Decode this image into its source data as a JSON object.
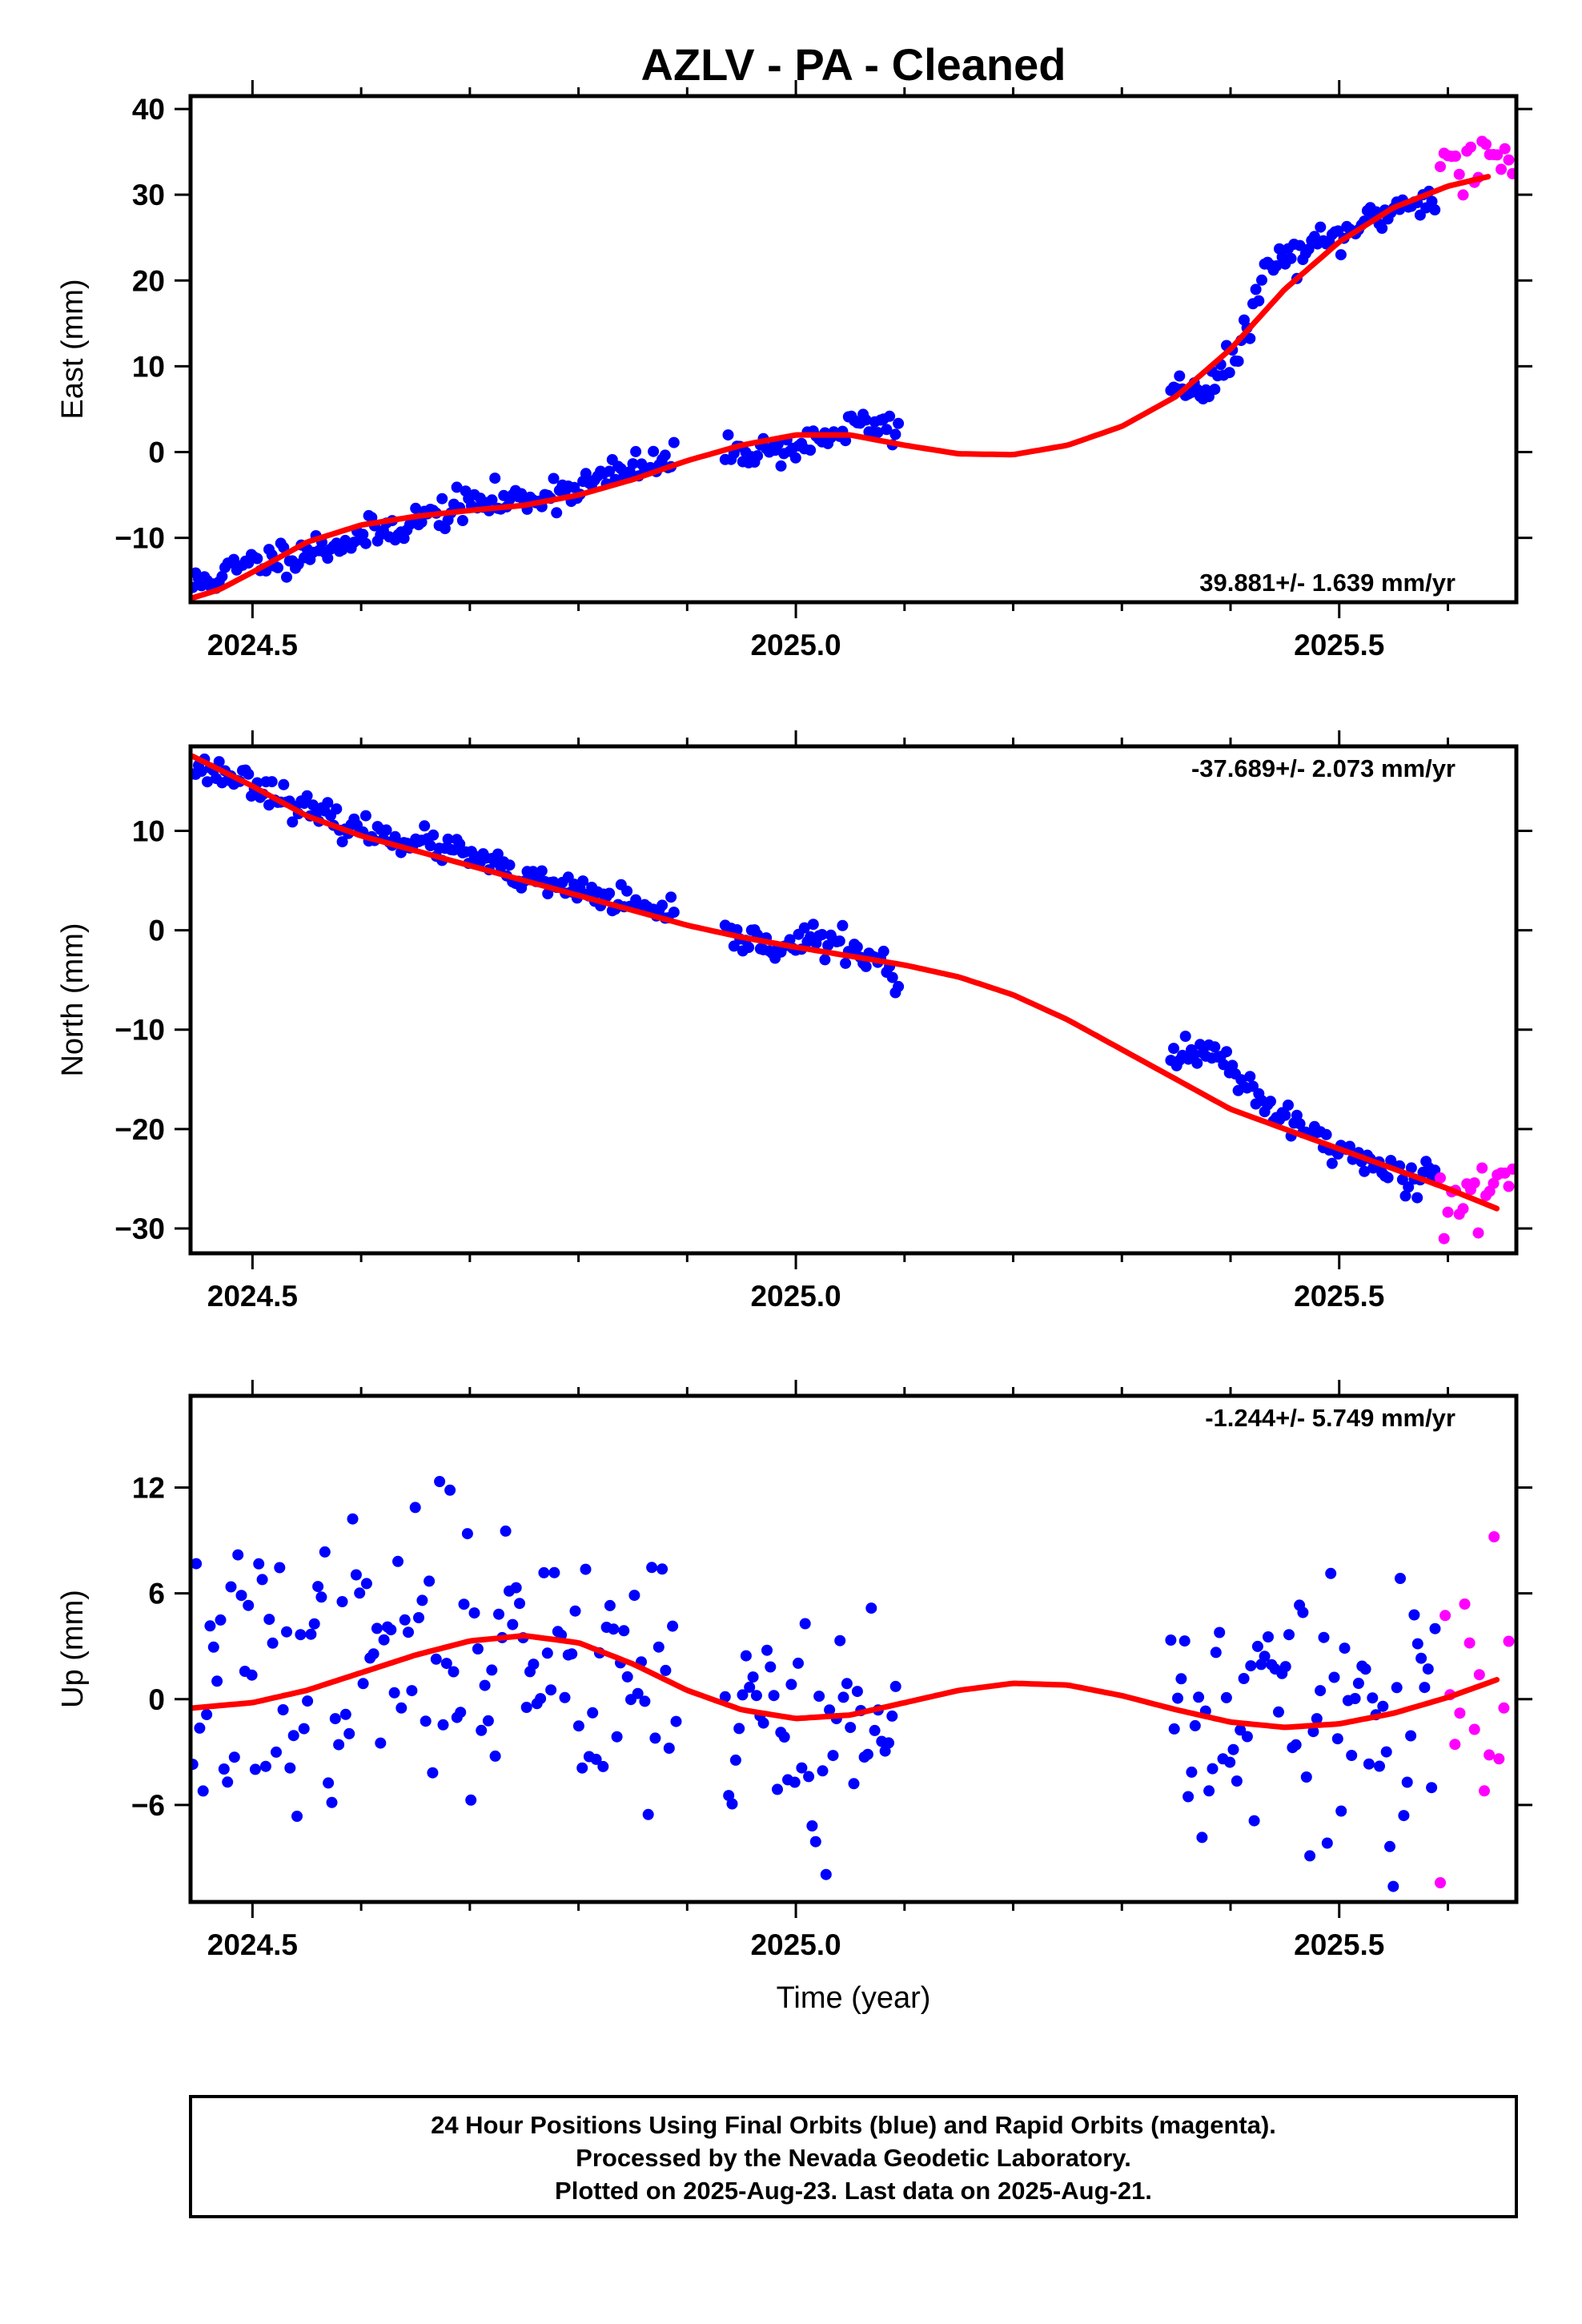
{
  "colors": {
    "final_orbits": "#0000ff",
    "rapid_orbits": "#ff00ff",
    "model_fit": "#ff0000",
    "frame": "#000000"
  },
  "chart_data": {
    "type": "scatter",
    "title": "AZLV  - PA - Cleaned",
    "xlabel": "Time (year)",
    "x_ticks": [
      "2024.5",
      "2025.0",
      "2025.5"
    ],
    "xlim": [
      2024.443,
      2025.663
    ],
    "grid": false,
    "footer_lines": [
      "24 Hour Positions Using Final Orbits (blue) and Rapid Orbits (magenta).",
      "Processed by the Nevada Geodetic Laboratory.",
      "Plotted on 2025-Aug-23. Last data on 2025-Aug-21."
    ],
    "panels": [
      {
        "name": "east",
        "ylabel": "East (mm)",
        "ylim": [
          -17.5,
          41.5
        ],
        "y_ticks": [
          "40",
          "30",
          "20",
          "10",
          "0",
          "−10"
        ],
        "y_tick_values": [
          40,
          30,
          20,
          10,
          0,
          -10
        ],
        "rate": "39.881+/- 1.639 mm/yr",
        "rate_position": "bottom-right",
        "seed": 11,
        "final_segments": [
          {
            "t0": 2024.445,
            "t1": 2024.89,
            "dt": 0.0027,
            "noise": 1.0
          },
          {
            "t0": 2024.935,
            "t1": 2025.095,
            "dt": 0.0027,
            "noise": 0.9
          },
          {
            "t0": 2025.345,
            "t1": 2025.59,
            "dt": 0.0027,
            "noise": 1.0
          }
        ],
        "rapid_segment": {
          "t0": 2025.593,
          "t1": 2025.66,
          "dt": 0.0035,
          "noise": 2.2,
          "offset": 2.8
        },
        "trend": [
          [
            2024.445,
            -17.0
          ],
          [
            2024.47,
            -16.0
          ],
          [
            2024.5,
            -14.0
          ],
          [
            2024.55,
            -10.5
          ],
          [
            2024.6,
            -8.5
          ],
          [
            2024.65,
            -7.5
          ],
          [
            2024.7,
            -6.8
          ],
          [
            2024.75,
            -6.2
          ],
          [
            2024.8,
            -5.0
          ],
          [
            2024.85,
            -3.2
          ],
          [
            2024.9,
            -1.0
          ],
          [
            2024.95,
            0.8
          ],
          [
            2025.0,
            2.0
          ],
          [
            2025.05,
            2.0
          ],
          [
            2025.1,
            0.8
          ],
          [
            2025.15,
            -0.2
          ],
          [
            2025.2,
            -0.3
          ],
          [
            2025.25,
            0.8
          ],
          [
            2025.3,
            3.0
          ],
          [
            2025.35,
            6.5
          ],
          [
            2025.4,
            12.0
          ],
          [
            2025.45,
            19.0
          ],
          [
            2025.5,
            24.5
          ],
          [
            2025.55,
            28.5
          ],
          [
            2025.6,
            31.0
          ],
          [
            2025.64,
            32.2
          ]
        ],
        "data_shape": [
          [
            2024.445,
            -15.5
          ],
          [
            2024.5,
            -13.0
          ],
          [
            2024.55,
            -11.5
          ],
          [
            2024.6,
            -10.0
          ],
          [
            2024.65,
            -8.0
          ],
          [
            2024.7,
            -6.0
          ],
          [
            2024.75,
            -5.5
          ],
          [
            2024.8,
            -4.0
          ],
          [
            2024.85,
            -2.0
          ],
          [
            2024.89,
            -1.0
          ],
          [
            2024.935,
            0.0
          ],
          [
            2025.0,
            0.5
          ],
          [
            2025.03,
            2.0
          ],
          [
            2025.06,
            3.2
          ],
          [
            2025.095,
            2.8
          ],
          [
            2025.345,
            7.5
          ],
          [
            2025.38,
            7.5
          ],
          [
            2025.41,
            12.0
          ],
          [
            2025.43,
            21.0
          ],
          [
            2025.45,
            22.5
          ],
          [
            2025.5,
            25.0
          ],
          [
            2025.55,
            28.5
          ],
          [
            2025.59,
            30.0
          ],
          [
            2025.66,
            31.0
          ]
        ]
      },
      {
        "name": "north",
        "ylabel": "North (mm)",
        "ylim": [
          -32.5,
          18.5
        ],
        "y_ticks": [
          "10",
          "0",
          "−10",
          "−20",
          "−30"
        ],
        "y_tick_values": [
          10,
          0,
          -10,
          -20,
          -30
        ],
        "rate": "-37.689+/- 2.073 mm/yr",
        "rate_position": "top-right",
        "seed": 23,
        "final_segments": [
          {
            "t0": 2024.445,
            "t1": 2024.89,
            "dt": 0.0027,
            "noise": 0.7
          },
          {
            "t0": 2024.935,
            "t1": 2025.095,
            "dt": 0.0027,
            "noise": 0.8
          },
          {
            "t0": 2025.345,
            "t1": 2025.59,
            "dt": 0.0027,
            "noise": 0.9
          }
        ],
        "rapid_segment": {
          "t0": 2025.593,
          "t1": 2025.66,
          "dt": 0.0035,
          "noise": 2.3,
          "offset": -0.5
        },
        "trend": [
          [
            2024.445,
            17.5
          ],
          [
            2024.5,
            14.5
          ],
          [
            2024.55,
            11.5
          ],
          [
            2024.6,
            9.5
          ],
          [
            2024.65,
            8.0
          ],
          [
            2024.7,
            6.5
          ],
          [
            2024.75,
            5.0
          ],
          [
            2024.8,
            3.5
          ],
          [
            2024.85,
            2.0
          ],
          [
            2024.9,
            0.5
          ],
          [
            2024.95,
            -0.7
          ],
          [
            2025.0,
            -1.7
          ],
          [
            2025.05,
            -2.6
          ],
          [
            2025.1,
            -3.5
          ],
          [
            2025.15,
            -4.7
          ],
          [
            2025.2,
            -6.5
          ],
          [
            2025.25,
            -9.0
          ],
          [
            2025.3,
            -12.0
          ],
          [
            2025.35,
            -15.0
          ],
          [
            2025.4,
            -18.0
          ],
          [
            2025.45,
            -20.0
          ],
          [
            2025.5,
            -22.0
          ],
          [
            2025.55,
            -24.0
          ],
          [
            2025.6,
            -26.0
          ],
          [
            2025.645,
            -28.0
          ]
        ],
        "data_shape": [
          [
            2024.445,
            16.5
          ],
          [
            2024.5,
            15.0
          ],
          [
            2024.55,
            12.0
          ],
          [
            2024.6,
            10.0
          ],
          [
            2024.65,
            9.0
          ],
          [
            2024.7,
            7.5
          ],
          [
            2024.75,
            5.0
          ],
          [
            2024.8,
            4.0
          ],
          [
            2024.85,
            2.5
          ],
          [
            2024.89,
            1.0
          ],
          [
            2024.935,
            -0.5
          ],
          [
            2024.98,
            -1.5
          ],
          [
            2025.02,
            -1.0
          ],
          [
            2025.06,
            -2.0
          ],
          [
            2025.095,
            -5.0
          ],
          [
            2025.345,
            -13.0
          ],
          [
            2025.39,
            -12.5
          ],
          [
            2025.42,
            -17.0
          ],
          [
            2025.45,
            -19.0
          ],
          [
            2025.5,
            -22.0
          ],
          [
            2025.55,
            -24.5
          ],
          [
            2025.59,
            -24.5
          ],
          [
            2025.66,
            -27.0
          ]
        ]
      },
      {
        "name": "up",
        "ylabel": "Up (mm)",
        "ylim": [
          -11.5,
          17.2
        ],
        "y_ticks": [
          "12",
          "6",
          "0",
          "−6"
        ],
        "y_tick_values": [
          12,
          6,
          0,
          -6
        ],
        "rate": "-1.244+/- 5.749 mm/yr",
        "rate_position": "top-right",
        "seed": 37,
        "final_segments": [
          {
            "t0": 2024.445,
            "t1": 2024.89,
            "dt": 0.0032,
            "noise": 3.8
          },
          {
            "t0": 2024.935,
            "t1": 2025.095,
            "dt": 0.0032,
            "noise": 3.6
          },
          {
            "t0": 2025.345,
            "t1": 2025.59,
            "dt": 0.0032,
            "noise": 3.8
          }
        ],
        "rapid_segment": {
          "t0": 2025.593,
          "t1": 2025.66,
          "dt": 0.0045,
          "noise": 5.0,
          "offset": 0.0
        },
        "trend": [
          [
            2024.445,
            -0.5
          ],
          [
            2024.5,
            -0.2
          ],
          [
            2024.55,
            0.5
          ],
          [
            2024.6,
            1.5
          ],
          [
            2024.65,
            2.5
          ],
          [
            2024.7,
            3.3
          ],
          [
            2024.75,
            3.6
          ],
          [
            2024.8,
            3.2
          ],
          [
            2024.85,
            2.0
          ],
          [
            2024.9,
            0.5
          ],
          [
            2024.95,
            -0.6
          ],
          [
            2025.0,
            -1.1
          ],
          [
            2025.05,
            -0.9
          ],
          [
            2025.1,
            -0.2
          ],
          [
            2025.15,
            0.5
          ],
          [
            2025.2,
            0.9
          ],
          [
            2025.25,
            0.8
          ],
          [
            2025.3,
            0.2
          ],
          [
            2025.35,
            -0.6
          ],
          [
            2025.4,
            -1.3
          ],
          [
            2025.45,
            -1.6
          ],
          [
            2025.5,
            -1.4
          ],
          [
            2025.55,
            -0.8
          ],
          [
            2025.6,
            0.1
          ],
          [
            2025.645,
            1.1
          ]
        ],
        "data_shape": [
          [
            2024.445,
            0.5
          ],
          [
            2024.55,
            1.5
          ],
          [
            2024.65,
            3.0
          ],
          [
            2024.75,
            3.5
          ],
          [
            2024.85,
            2.0
          ],
          [
            2024.89,
            1.5
          ],
          [
            2024.935,
            -1.0
          ],
          [
            2025.0,
            -1.5
          ],
          [
            2025.095,
            -1.0
          ],
          [
            2025.345,
            -1.0
          ],
          [
            2025.45,
            -0.5
          ],
          [
            2025.59,
            -2.0
          ],
          [
            2025.66,
            1.0
          ]
        ]
      }
    ]
  }
}
